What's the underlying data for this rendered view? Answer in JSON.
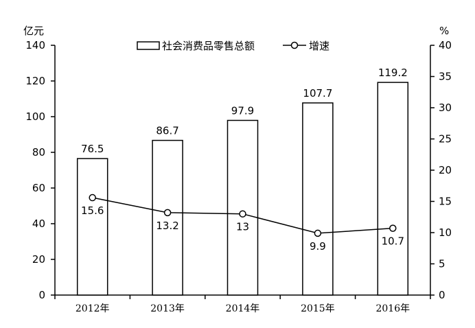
{
  "chart_data": {
    "type": "bar",
    "categories": [
      "2012年",
      "2013年",
      "2014年",
      "2015年",
      "2016年"
    ],
    "series": [
      {
        "name": "社会消费品零售总额",
        "type": "bar",
        "axis": "left",
        "values": [
          76.5,
          86.7,
          97.9,
          107.7,
          119.2
        ]
      },
      {
        "name": "增速",
        "type": "line",
        "axis": "right",
        "values": [
          15.6,
          13.2,
          13,
          9.9,
          10.7
        ]
      }
    ],
    "ylabel_left": "亿元",
    "ylabel_right": "%",
    "ylim_left": [
      0,
      140
    ],
    "yticks_left": [
      0,
      20,
      40,
      60,
      80,
      100,
      120,
      140
    ],
    "ylim_right": [
      0,
      40
    ],
    "yticks_right": [
      0,
      5,
      10,
      15,
      20,
      25,
      30,
      35,
      40
    ],
    "grid": false,
    "legend_position": "top-center"
  }
}
